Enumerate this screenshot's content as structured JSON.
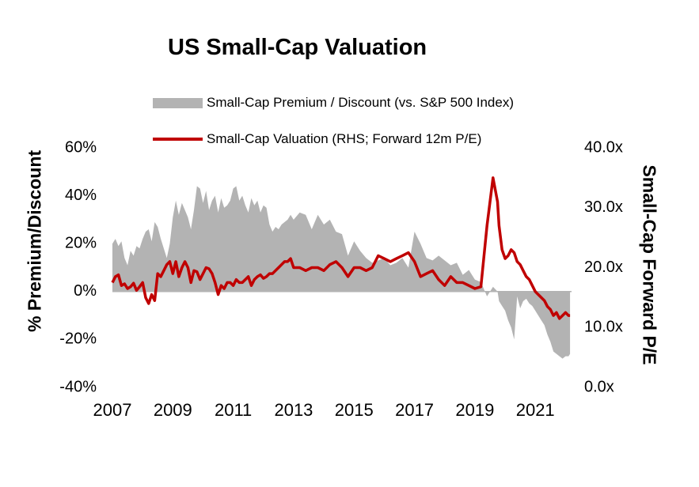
{
  "chart_data": {
    "type": "area+line",
    "title": "US Small-Cap Valuation",
    "ylabel_left": "% Premium/Discount",
    "ylabel_right": "Small-Cap Forward P/E",
    "left_axis": {
      "ticks": [
        "60%",
        "40%",
        "20%",
        "0%",
        "-20%",
        "-40%"
      ],
      "tick_values": [
        60,
        40,
        20,
        0,
        -20,
        -40
      ],
      "ylim": [
        -40,
        60
      ]
    },
    "right_axis": {
      "ticks": [
        "40.0x",
        "30.0x",
        "20.0x",
        "10.0x",
        "0.0x"
      ],
      "tick_values": [
        40,
        30,
        20,
        10,
        0
      ],
      "ylim": [
        0,
        40
      ]
    },
    "x_ticks": [
      "2007",
      "2009",
      "2011",
      "2013",
      "2015",
      "2017",
      "2019",
      "2021"
    ],
    "x_tick_values": [
      2007,
      2009,
      2011,
      2013,
      2015,
      2017,
      2019,
      2021
    ],
    "xlim": [
      2007,
      2022.2
    ],
    "grid": false,
    "legend_position": "top",
    "series": [
      {
        "name": "Small-Cap Premium / Discount (vs. S&P 500 Index)",
        "type": "area",
        "axis": "left",
        "color": "#b3b3b3",
        "x": [
          2007.0,
          2007.1,
          2007.2,
          2007.3,
          2007.4,
          2007.5,
          2007.6,
          2007.7,
          2007.8,
          2007.9,
          2008.0,
          2008.1,
          2008.2,
          2008.3,
          2008.4,
          2008.5,
          2008.6,
          2008.7,
          2008.8,
          2008.9,
          2009.0,
          2009.1,
          2009.2,
          2009.3,
          2009.4,
          2009.5,
          2009.6,
          2009.7,
          2009.8,
          2009.9,
          2010.0,
          2010.1,
          2010.2,
          2010.3,
          2010.4,
          2010.5,
          2010.6,
          2010.7,
          2010.8,
          2010.9,
          2011.0,
          2011.1,
          2011.2,
          2011.3,
          2011.4,
          2011.5,
          2011.6,
          2011.7,
          2011.8,
          2011.9,
          2012.0,
          2012.1,
          2012.2,
          2012.3,
          2012.4,
          2012.5,
          2012.6,
          2012.7,
          2012.8,
          2012.9,
          2013.0,
          2013.2,
          2013.4,
          2013.6,
          2013.8,
          2014.0,
          2014.2,
          2014.4,
          2014.6,
          2014.8,
          2015.0,
          2015.2,
          2015.4,
          2015.6,
          2015.8,
          2016.0,
          2016.2,
          2016.4,
          2016.6,
          2016.8,
          2017.0,
          2017.2,
          2017.4,
          2017.6,
          2017.8,
          2018.0,
          2018.2,
          2018.4,
          2018.6,
          2018.8,
          2019.0,
          2019.2,
          2019.4,
          2019.6,
          2019.75,
          2019.8,
          2019.9,
          2020.0,
          2020.1,
          2020.2,
          2020.3,
          2020.4,
          2020.5,
          2020.6,
          2020.7,
          2020.8,
          2020.9,
          2021.0,
          2021.1,
          2021.2,
          2021.3,
          2021.4,
          2021.5,
          2021.6,
          2021.7,
          2021.8,
          2021.9,
          2022.0,
          2022.1,
          2022.15
        ],
        "values": [
          20,
          22,
          19,
          21,
          14,
          11,
          17,
          15,
          19,
          18,
          22,
          25,
          26,
          21,
          29,
          27,
          22,
          18,
          14,
          20,
          31,
          38,
          32,
          37,
          34,
          31,
          26,
          34,
          44,
          43,
          37,
          42,
          34,
          38,
          40,
          33,
          39,
          35,
          36,
          38,
          43,
          44,
          38,
          40,
          36,
          33,
          39,
          36,
          38,
          33,
          36,
          35,
          28,
          25,
          27,
          26,
          28,
          29,
          30,
          32,
          30,
          33,
          32,
          26,
          32,
          28,
          30,
          25,
          24,
          15,
          21,
          17,
          14,
          12,
          13,
          14,
          11,
          12,
          14,
          10,
          25,
          20,
          14,
          13,
          15,
          13,
          11,
          12,
          7,
          9,
          5,
          4,
          -2,
          2,
          0,
          -4,
          -6,
          -8,
          -12,
          -15,
          -20,
          -2,
          -7,
          -4,
          -3,
          -5,
          -6,
          -8,
          -10,
          -12,
          -14,
          -18,
          -21,
          -25,
          -26,
          -27,
          -28,
          -27,
          -27,
          -26
        ]
      },
      {
        "name": "Small-Cap Valuation (RHS; Forward 12m P/E)",
        "type": "line",
        "axis": "right",
        "color": "#c00000",
        "x": [
          2007.0,
          2007.1,
          2007.2,
          2007.3,
          2007.4,
          2007.5,
          2007.6,
          2007.7,
          2007.8,
          2007.9,
          2008.0,
          2008.1,
          2008.2,
          2008.3,
          2008.4,
          2008.5,
          2008.6,
          2008.7,
          2008.8,
          2008.9,
          2009.0,
          2009.1,
          2009.2,
          2009.3,
          2009.4,
          2009.5,
          2009.6,
          2009.7,
          2009.8,
          2009.9,
          2010.0,
          2010.1,
          2010.2,
          2010.3,
          2010.4,
          2010.5,
          2010.6,
          2010.7,
          2010.8,
          2010.9,
          2011.0,
          2011.1,
          2011.2,
          2011.3,
          2011.4,
          2011.5,
          2011.6,
          2011.7,
          2011.8,
          2011.9,
          2012.0,
          2012.1,
          2012.2,
          2012.3,
          2012.4,
          2012.5,
          2012.6,
          2012.7,
          2012.8,
          2012.9,
          2013.0,
          2013.2,
          2013.4,
          2013.6,
          2013.8,
          2014.0,
          2014.2,
          2014.4,
          2014.6,
          2014.8,
          2015.0,
          2015.2,
          2015.4,
          2015.6,
          2015.8,
          2016.0,
          2016.2,
          2016.4,
          2016.6,
          2016.8,
          2017.0,
          2017.2,
          2017.4,
          2017.6,
          2017.8,
          2018.0,
          2018.2,
          2018.4,
          2018.6,
          2018.8,
          2019.0,
          2019.2,
          2019.4,
          2019.6,
          2019.75,
          2019.8,
          2019.9,
          2020.0,
          2020.1,
          2020.2,
          2020.3,
          2020.4,
          2020.5,
          2020.6,
          2020.7,
          2020.8,
          2020.9,
          2021.0,
          2021.1,
          2021.2,
          2021.3,
          2021.4,
          2021.5,
          2021.6,
          2021.7,
          2021.8,
          2021.9,
          2022.0,
          2022.1,
          2022.15
        ],
        "values": [
          17.5,
          18.5,
          18.8,
          17.0,
          17.3,
          16.5,
          16.8,
          17.4,
          16.2,
          16.8,
          17.5,
          15.0,
          14.0,
          15.5,
          14.5,
          19.0,
          18.5,
          19.5,
          20.5,
          21.0,
          19.0,
          21.0,
          18.5,
          20.0,
          21.0,
          20.0,
          17.5,
          19.5,
          19.3,
          18.0,
          19.0,
          20.0,
          19.8,
          19.0,
          17.5,
          15.5,
          17.0,
          16.5,
          17.5,
          17.5,
          17.0,
          18.0,
          17.5,
          17.5,
          18.0,
          18.5,
          17.0,
          18.0,
          18.5,
          18.8,
          18.2,
          18.5,
          19.0,
          19.0,
          19.5,
          20.0,
          20.5,
          21.0,
          21.0,
          21.5,
          20.0,
          20.0,
          19.5,
          20.0,
          20.0,
          19.5,
          20.5,
          21.0,
          20.0,
          18.5,
          20.0,
          20.0,
          19.5,
          20.0,
          22.0,
          21.5,
          21.0,
          21.5,
          22.0,
          22.5,
          21.0,
          18.5,
          19.0,
          19.5,
          18.0,
          17.0,
          18.5,
          17.5,
          17.5,
          17.0,
          16.5,
          16.8,
          27.0,
          35.0,
          31.0,
          27.0,
          23.0,
          21.5,
          22.0,
          23.0,
          22.5,
          21.0,
          20.5,
          19.5,
          18.5,
          18.0,
          17.0,
          16.0,
          15.5,
          15.0,
          14.5,
          13.5,
          13.0,
          12.0,
          12.5,
          11.5,
          12.0,
          12.5,
          12.0,
          12.0
        ]
      }
    ]
  },
  "legend": {
    "area_label": "Small-Cap Premium / Discount (vs. S&P 500 Index)",
    "line_label": "Small-Cap Valuation (RHS; Forward 12m P/E)"
  }
}
